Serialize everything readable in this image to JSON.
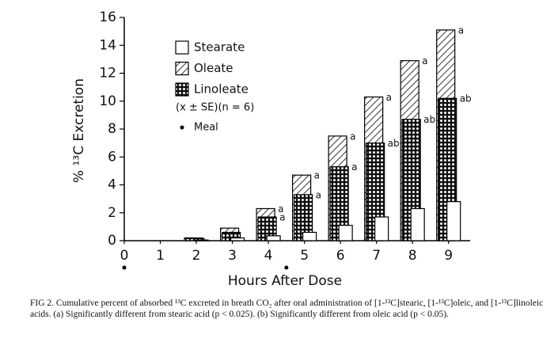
{
  "chart_data": {
    "type": "bar",
    "y_label": "% ¹³C Excretion",
    "x_label": "Hours After Dose",
    "x": [
      0,
      1,
      2,
      3,
      4,
      5,
      6,
      7,
      8,
      9
    ],
    "xlim": [
      0,
      9.6
    ],
    "xticks": [
      0,
      1,
      2,
      3,
      4,
      5,
      6,
      7,
      8,
      9
    ],
    "ylim": [
      0,
      16
    ],
    "yticks": [
      0,
      2,
      4,
      6,
      8,
      10,
      12,
      14,
      16
    ],
    "series": [
      {
        "name": "Oleate",
        "pattern": "hatch",
        "color": "#000000",
        "values": [
          0,
          0,
          0.2,
          0.9,
          2.3,
          4.7,
          7.5,
          10.3,
          12.9,
          15.1
        ],
        "significance": [
          null,
          null,
          null,
          null,
          "a",
          "a",
          "a",
          "a",
          "a",
          "a"
        ]
      },
      {
        "name": "Linoleate",
        "pattern": "dots",
        "color": "#000000",
        "values": [
          0,
          0,
          0.15,
          0.6,
          1.7,
          3.3,
          5.3,
          7.0,
          8.7,
          10.2
        ],
        "significance": [
          null,
          null,
          null,
          null,
          "a",
          "a",
          "a",
          "ab",
          "ab",
          "ab"
        ]
      },
      {
        "name": "Stearate",
        "pattern": "plain",
        "color": "#000000",
        "values": [
          0,
          0,
          0.05,
          0.2,
          0.35,
          0.6,
          1.1,
          1.7,
          2.3,
          2.8
        ],
        "significance": [
          null,
          null,
          null,
          null,
          null,
          null,
          null,
          null,
          null,
          null
        ]
      }
    ],
    "legend_order": [
      2,
      0,
      1
    ],
    "legend_note": "(x ± SE)(n = 6)",
    "meal_label": "Meal",
    "meal_times": [
      0,
      4.5
    ],
    "caption": "FIG 2. Cumulative percent of absorbed ¹³C excreted in breath CO₂ after oral administration of [1-¹³C]stearic, [1-¹³C]oleic, and [1-¹³C]linoleic acids. (a) Significantly different from stearic acid (p < 0.025). (b) Significantly different from oleic acid (p < 0.05)."
  }
}
